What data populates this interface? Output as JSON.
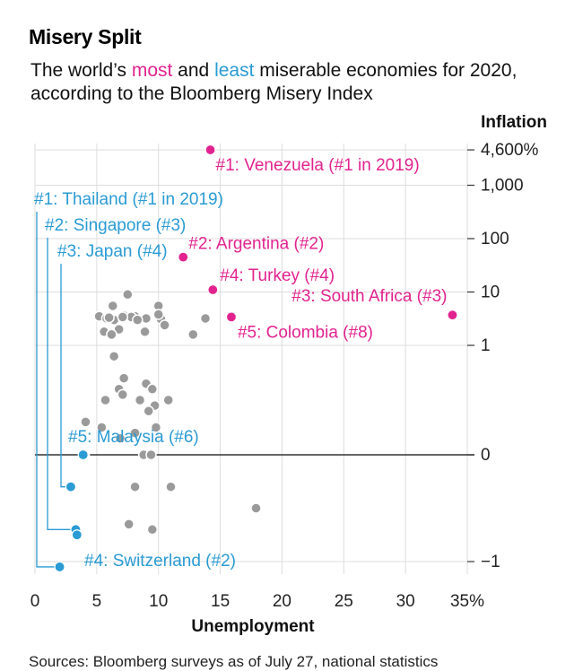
{
  "title": "Misery Split",
  "subtitle": {
    "before": "The world’s ",
    "most": "most",
    "middle": " and ",
    "least": "least",
    "after": " miserable economies for 2020, according to the Bloomberg Misery Index"
  },
  "source": "Sources: Bloomberg surveys as of July 27, national statistics",
  "colors": {
    "most": "#e2238f",
    "least": "#2a9bd4",
    "other": "#9a9a9a",
    "axis": "#333333",
    "grid": "#dddddd"
  },
  "chart_data": {
    "type": "scatter",
    "xlabel": "Unemployment",
    "ylabel": "Inflation",
    "y_scale": "symmetric-log",
    "xlim": [
      0,
      35
    ],
    "x_ticks": [
      0,
      5,
      10,
      15,
      20,
      25,
      30,
      35
    ],
    "x_tick_labels": [
      "0",
      "5",
      "10",
      "15",
      "20",
      "25",
      "30",
      "35%"
    ],
    "y_ticks": [
      4600,
      1000,
      100,
      10,
      1,
      0,
      -1
    ],
    "y_tick_labels": [
      "4,600%",
      "1,000",
      "100",
      "10",
      "1",
      "0",
      "−1"
    ],
    "most_miserable": [
      {
        "label": "#1: Venezuela (#1 in 2019)",
        "x": 14.2,
        "y": 4600
      },
      {
        "label": "#2: Argentina (#2)",
        "x": 12.0,
        "y": 45
      },
      {
        "label": "#3: South Africa (#3)",
        "x": 33.8,
        "y": 3.7
      },
      {
        "label": "#4: Turkey (#4)",
        "x": 14.4,
        "y": 11
      },
      {
        "label": "#5: Colombia (#8)",
        "x": 15.9,
        "y": 3.4
      }
    ],
    "least_miserable": [
      {
        "label": "#1: Thailand (#1 in 2019)",
        "x": 2.0,
        "y": -1.05
      },
      {
        "label": "#2: Singapore (#3)",
        "x": 3.3,
        "y": -0.7
      },
      {
        "label": "#3: Japan (#4)",
        "x": 2.9,
        "y": -0.3
      },
      {
        "label": "#4: Switzerland (#2)",
        "x": 3.4,
        "y": -0.75
      },
      {
        "label": "#5: Malaysia (#6)",
        "x": 3.9,
        "y": 0
      }
    ],
    "others": [
      {
        "x": 5.2,
        "y": 3.5
      },
      {
        "x": 5.8,
        "y": 3.2
      },
      {
        "x": 6.4,
        "y": 3.0
      },
      {
        "x": 7.2,
        "y": 3.6
      },
      {
        "x": 8.1,
        "y": 3.5
      },
      {
        "x": 9.0,
        "y": 3.2
      },
      {
        "x": 10.2,
        "y": 3.1
      },
      {
        "x": 7.5,
        "y": 9.0
      },
      {
        "x": 10.0,
        "y": 5.5
      },
      {
        "x": 10.0,
        "y": 3.8
      },
      {
        "x": 6.0,
        "y": 3.3
      },
      {
        "x": 7.8,
        "y": 3.4
      },
      {
        "x": 8.3,
        "y": 3.0
      },
      {
        "x": 7.1,
        "y": 3.4
      },
      {
        "x": 5.6,
        "y": 1.8
      },
      {
        "x": 8.9,
        "y": 1.8
      },
      {
        "x": 6.8,
        "y": 2.0
      },
      {
        "x": 6.2,
        "y": 1.6
      },
      {
        "x": 10.5,
        "y": 2.4
      },
      {
        "x": 12.8,
        "y": 1.6
      },
      {
        "x": 13.8,
        "y": 3.2
      },
      {
        "x": 6.3,
        "y": 5.5
      },
      {
        "x": 6.4,
        "y": 0.9
      },
      {
        "x": 7.2,
        "y": 0.7
      },
      {
        "x": 6.8,
        "y": 0.6
      },
      {
        "x": 5.7,
        "y": 0.5
      },
      {
        "x": 8.5,
        "y": 0.5
      },
      {
        "x": 9.7,
        "y": 0.45
      },
      {
        "x": 10.8,
        "y": 0.5
      },
      {
        "x": 9.0,
        "y": 0.65
      },
      {
        "x": 9.2,
        "y": 0.4
      },
      {
        "x": 7.1,
        "y": 0.55
      },
      {
        "x": 5.4,
        "y": 0.25
      },
      {
        "x": 8.1,
        "y": 0.2
      },
      {
        "x": 9.8,
        "y": 0.25
      },
      {
        "x": 4.1,
        "y": 0.3
      },
      {
        "x": 6.9,
        "y": 0.15
      },
      {
        "x": 9.5,
        "y": 0.6
      },
      {
        "x": 8.8,
        "y": 0
      },
      {
        "x": 9.4,
        "y": 0
      },
      {
        "x": 4.0,
        "y": 0
      },
      {
        "x": 8.1,
        "y": -0.3
      },
      {
        "x": 11.0,
        "y": -0.3
      },
      {
        "x": 17.9,
        "y": -0.5
      },
      {
        "x": 7.6,
        "y": -0.65
      },
      {
        "x": 9.5,
        "y": -0.7
      }
    ]
  }
}
